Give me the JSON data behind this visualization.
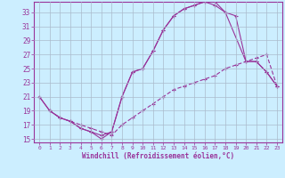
{
  "xlabel": "Windchill (Refroidissement éolien,°C)",
  "background_color": "#cceeff",
  "grid_color": "#aabbcc",
  "line_color": "#993399",
  "xlim": [
    -0.5,
    23.5
  ],
  "ylim": [
    14.5,
    34.5
  ],
  "xticks": [
    0,
    1,
    2,
    3,
    4,
    5,
    6,
    7,
    8,
    9,
    10,
    11,
    12,
    13,
    14,
    15,
    16,
    17,
    18,
    19,
    20,
    21,
    22,
    23
  ],
  "yticks": [
    15,
    17,
    19,
    21,
    23,
    25,
    27,
    29,
    31,
    33
  ],
  "line1_x": [
    0,
    1,
    2,
    3,
    4,
    5,
    6,
    7,
    8,
    9,
    10,
    11,
    12,
    13,
    14,
    15,
    16,
    17,
    18,
    19,
    20,
    21,
    22,
    23
  ],
  "line1_y": [
    21,
    19,
    18,
    17.5,
    16.5,
    16,
    15.5,
    16,
    21,
    24.5,
    25,
    27.5,
    30.5,
    32.5,
    33.5,
    34,
    34.5,
    34.5,
    33,
    32.5,
    26,
    26,
    24.5,
    22.5
  ],
  "line2_x": [
    1,
    2,
    3,
    4,
    5,
    6,
    7,
    8,
    9,
    10,
    11,
    12,
    13,
    14,
    15,
    16,
    17,
    18,
    19,
    20,
    21,
    22,
    23
  ],
  "line2_y": [
    19,
    18,
    17.5,
    17,
    16.5,
    16,
    15.5,
    17,
    18,
    19,
    20,
    21,
    22,
    22.5,
    23,
    23.5,
    24,
    25,
    25.5,
    26,
    26.5,
    27,
    22.5
  ],
  "line3_x": [
    0,
    1,
    2,
    3,
    4,
    5,
    6,
    7,
    8,
    9,
    10,
    11,
    12,
    13,
    14,
    15,
    16,
    17,
    18,
    20,
    21,
    22,
    23
  ],
  "line3_y": [
    21,
    19,
    18,
    17.5,
    16.5,
    16,
    15,
    16,
    21,
    24.5,
    25,
    27.5,
    30.5,
    32.5,
    33.5,
    34,
    34.5,
    34,
    33,
    26,
    26,
    24.5,
    22.5
  ]
}
